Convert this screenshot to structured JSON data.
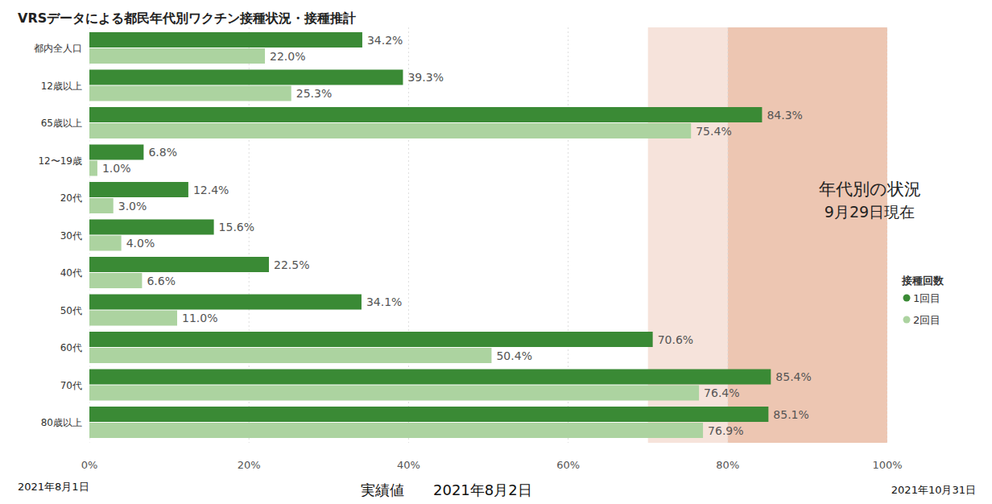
{
  "chart_data": {
    "type": "bar",
    "orientation": "horizontal",
    "title": "VRSデータによる都民年代別ワクチン接種状況・接種推計",
    "categories": [
      "都内全人口",
      "12歳以上",
      "65歳以上",
      "12〜19歳",
      "20代",
      "30代",
      "40代",
      "50代",
      "60代",
      "70代",
      "80歳以上"
    ],
    "series": [
      {
        "name": "1回目",
        "color": "#3a8a35",
        "values": [
          34.2,
          39.3,
          84.3,
          6.8,
          12.4,
          15.6,
          22.5,
          34.1,
          70.6,
          85.4,
          85.1
        ],
        "value_labels": [
          "34.2%",
          "39.3%",
          "84.3%",
          "6.8%",
          "12.4%",
          "15.6%",
          "22.5%",
          "34.1%",
          "70.6%",
          "85.4%",
          "85.1%"
        ]
      },
      {
        "name": "2回目",
        "color": "#acd3a0",
        "values": [
          22.0,
          25.3,
          75.4,
          1.0,
          3.0,
          4.0,
          6.6,
          11.0,
          50.4,
          76.4,
          76.9
        ],
        "value_labels": [
          "22.0%",
          "25.3%",
          "75.4%",
          "1.0%",
          "3.0%",
          "4.0%",
          "6.6%",
          "11.0%",
          "50.4%",
          "76.4%",
          "76.9%"
        ]
      }
    ],
    "xlim": [
      0,
      100
    ],
    "xticks": [
      {
        "value": 0,
        "label": "0%"
      },
      {
        "value": 20,
        "label": "20%"
      },
      {
        "value": 40,
        "label": "40%"
      },
      {
        "value": 60,
        "label": "60%"
      },
      {
        "value": 80,
        "label": "80%"
      },
      {
        "value": 100,
        "label": "100%"
      }
    ],
    "grid": true,
    "data_labels": true,
    "legend": "right",
    "legend_title": "接種回数",
    "bands": [
      {
        "from": 70,
        "to": 80,
        "color": "#f6e3db"
      },
      {
        "from": 80,
        "to": 100,
        "color": "#edc6b2"
      }
    ],
    "annotations": [
      "年代別の状況",
      "9月29日現在"
    ],
    "footer": [
      "2021年8月1日",
      "実績値",
      "2021年8月2日",
      "2021年10月31日"
    ]
  }
}
